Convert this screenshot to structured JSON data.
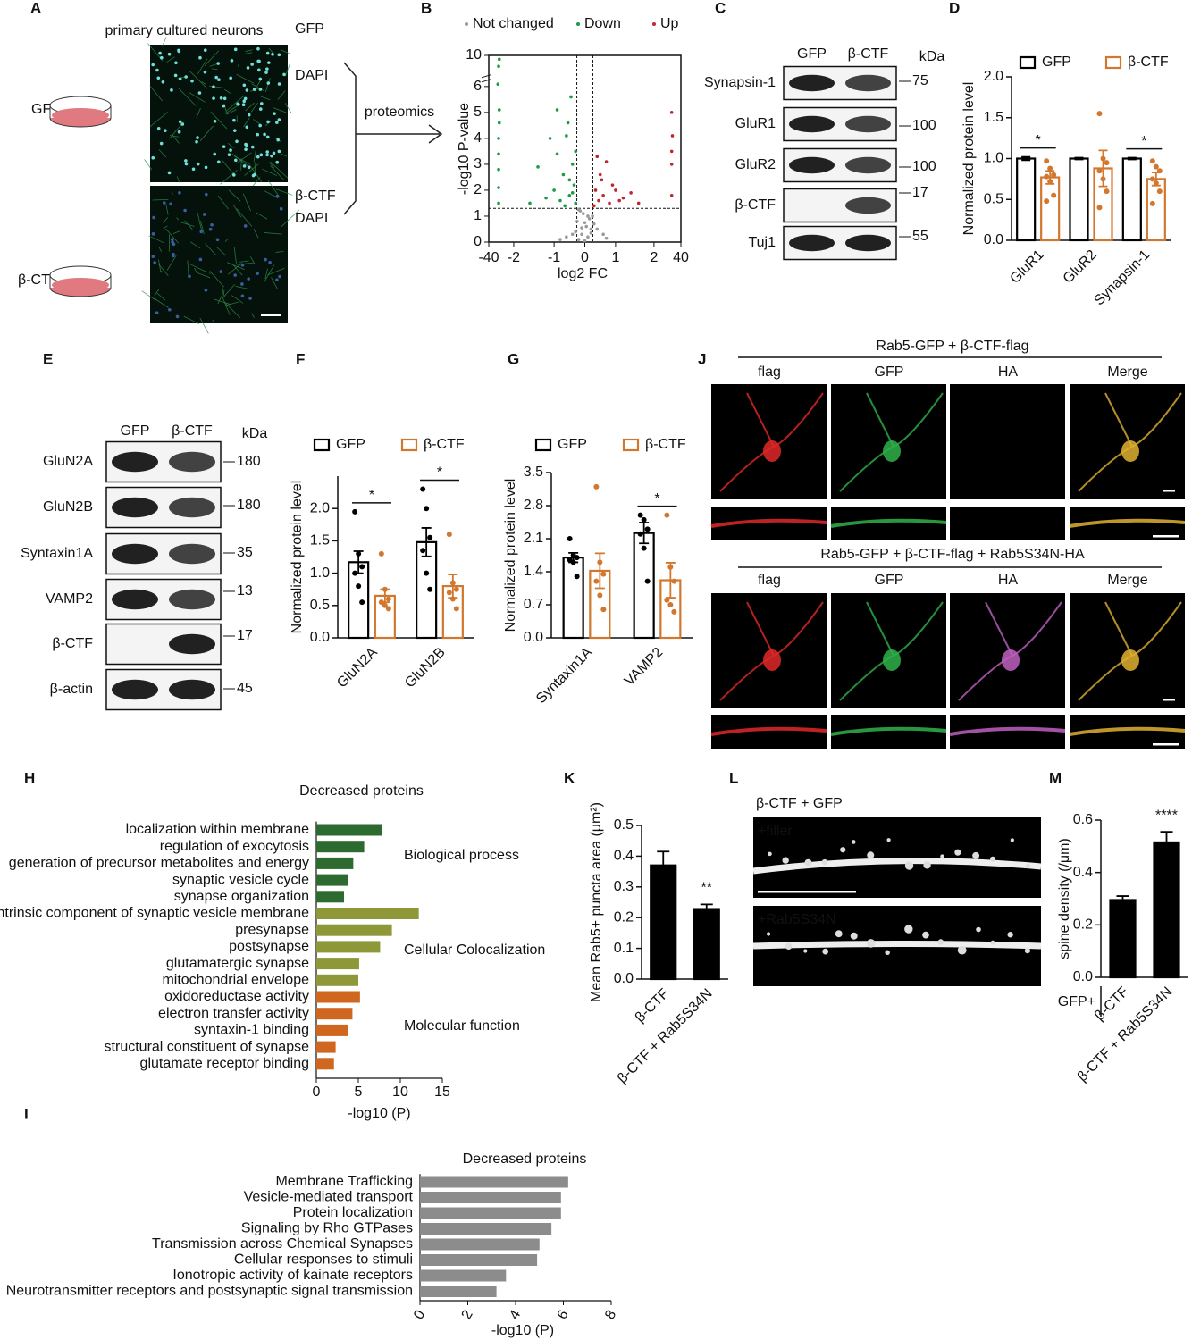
{
  "panel_a": {
    "label": "A",
    "title": "primary cultured neurons",
    "conditions": [
      "GFP",
      "β-CTF"
    ],
    "stains": [
      [
        "GFP",
        "DAPI"
      ],
      [
        "β-CTF",
        "DAPI"
      ]
    ],
    "arrow_label": "proteomics"
  },
  "panel_c": {
    "label": "C",
    "lanes": [
      "GFP",
      "β-CTF"
    ],
    "unit": "kDa",
    "rows": [
      {
        "name": "Synapsin-1",
        "kda": 75
      },
      {
        "name": "GluR1",
        "kda": 100
      },
      {
        "name": "GluR2",
        "kda": 100
      },
      {
        "name": "β-CTF",
        "kda": 17
      },
      {
        "name": "Tuj1",
        "kda": 55
      }
    ]
  },
  "panel_e": {
    "label": "E",
    "lanes": [
      "GFP",
      "β-CTF"
    ],
    "unit": "kDa",
    "rows": [
      {
        "name": "GluN2A",
        "kda": 180
      },
      {
        "name": "GluN2B",
        "kda": 180
      },
      {
        "name": "Syntaxin1A",
        "kda": 35
      },
      {
        "name": "VAMP2",
        "kda": 13
      },
      {
        "name": "β-CTF",
        "kda": 17
      },
      {
        "name": "β-actin",
        "kda": 45
      }
    ]
  },
  "panel_j": {
    "label": "J",
    "groups": [
      {
        "title": "Rab5-GFP + β-CTF-flag",
        "channels": [
          "flag",
          "GFP",
          "HA",
          "Merge"
        ]
      },
      {
        "title": "Rab5-GFP + β-CTF-flag + Rab5S34N-HA",
        "channels": [
          "flag",
          "GFP",
          "HA",
          "Merge"
        ]
      }
    ]
  },
  "panel_l": {
    "label": "L",
    "title": "β-CTF + GFP",
    "conditions": [
      "+filler",
      "+Rab5S34N"
    ]
  },
  "chart_data": [
    {
      "type": "scatter",
      "label": "B",
      "xlabel": "log2 FC",
      "ylabel": "-log10 P-value",
      "xlim": [
        -40,
        40
      ],
      "ylim": [
        0,
        10
      ],
      "xticks": [
        -40,
        -2,
        -1,
        0,
        1,
        2,
        40
      ],
      "yticks": [
        0,
        1,
        2,
        3,
        4,
        5,
        6,
        10
      ],
      "thresholds": {
        "x": [
          -0.26,
          0.26
        ],
        "y": 1.3
      },
      "series": [
        {
          "name": "Not changed",
          "color": "#9a9a9a",
          "x": [
            -0.2,
            -0.1,
            0,
            0.1,
            0.2,
            -0.25,
            0.25,
            -0.15,
            0.15,
            0.05,
            -0.05,
            -0.3,
            0.3,
            -0.4,
            0.4,
            -0.6,
            0.6,
            -0.8,
            0.7,
            -0.2,
            0.2,
            0,
            -0.1,
            0.1
          ],
          "values": [
            0.1,
            0.3,
            0.05,
            0.2,
            0.5,
            0.8,
            1.0,
            1.2,
            0.9,
            0.6,
            1.1,
            0.4,
            0.7,
            0.3,
            0.5,
            0.2,
            0.3,
            0.1,
            0.15,
            1.25,
            0.35,
            0.75,
            0.55,
            1.0
          ]
        },
        {
          "name": "Down",
          "color": "#1f9a45",
          "x": [
            -0.3,
            -0.35,
            -0.4,
            -0.5,
            -0.6,
            -0.7,
            -0.8,
            -0.9,
            -1.0,
            -1.2,
            -1.4,
            -1.6,
            -0.45,
            -0.55,
            -0.65,
            -0.3,
            -0.4,
            -0.9,
            -0.5,
            -1.1,
            -25,
            -25,
            -25,
            -25,
            -25,
            -24,
            -24,
            -26,
            -24,
            -25
          ],
          "values": [
            1.5,
            2.2,
            3.0,
            1.8,
            4.1,
            2.6,
            1.6,
            3.4,
            2.0,
            1.7,
            2.9,
            1.5,
            5.6,
            4.6,
            1.4,
            3.5,
            1.9,
            5.1,
            2.4,
            4.0,
            1.5,
            2.1,
            2.8,
            3.4,
            4.0,
            4.6,
            5.1,
            6.3,
            9.5,
            8.6
          ]
        },
        {
          "name": "Up",
          "color": "#c0272d",
          "x": [
            0.3,
            0.35,
            0.45,
            0.5,
            0.6,
            0.7,
            0.8,
            0.9,
            1.0,
            1.2,
            1.4,
            1.6,
            0.4,
            0.55,
            1.1,
            27,
            27,
            27,
            28,
            27
          ],
          "values": [
            1.4,
            2.0,
            1.6,
            2.6,
            1.8,
            3.1,
            1.5,
            2.2,
            2.0,
            1.7,
            1.9,
            1.5,
            3.3,
            2.4,
            1.6,
            1.8,
            3.0,
            3.5,
            4.1,
            5.0
          ]
        }
      ]
    },
    {
      "type": "bar",
      "label": "D",
      "ylabel": "Normalized protein level",
      "categories": [
        "GluR1",
        "GluR2",
        "Synapsin-1"
      ],
      "ylim": [
        0,
        2
      ],
      "yticks": [
        {
          "value": 0,
          "label": "0.0"
        },
        0.5,
        {
          "value": 1,
          "label": "1.0"
        },
        1.5,
        {
          "value": 2,
          "label": "2.0"
        }
      ],
      "significance": [
        "*",
        null,
        "*"
      ],
      "series": [
        {
          "name": "GFP",
          "color": "#000000",
          "values": [
            1.0,
            1.0,
            1.0
          ],
          "errors": [
            0.02,
            0.01,
            0.01
          ]
        },
        {
          "name": "β-CTF",
          "color": "#d2772e",
          "values": [
            0.77,
            0.88,
            0.75
          ],
          "errors": [
            0.08,
            0.22,
            0.08
          ],
          "points": [
            [
              0.97,
              0.88,
              0.8,
              0.78,
              0.72,
              0.55,
              0.48
            ],
            [
              1.55,
              1.0,
              0.95,
              0.85,
              0.75,
              0.6,
              0.4
            ],
            [
              0.97,
              0.9,
              0.85,
              0.75,
              0.7,
              0.6,
              0.45
            ]
          ]
        }
      ]
    },
    {
      "type": "bar",
      "label": "F",
      "ylabel": "Normalized protein level",
      "categories": [
        "GluN2A",
        "GluN2B"
      ],
      "ylim": [
        0,
        2.5
      ],
      "yticks": [
        {
          "value": 0,
          "label": "0.0"
        },
        0.5,
        {
          "value": 1,
          "label": "1.0"
        },
        1.5,
        {
          "value": 2,
          "label": "2.0"
        }
      ],
      "significance": [
        "*",
        "*"
      ],
      "series": [
        {
          "name": "GFP",
          "color": "#000000",
          "values": [
            1.17,
            1.48
          ],
          "errors": [
            0.17,
            0.22
          ],
          "points": [
            [
              1.95,
              1.3,
              1.1,
              1.0,
              0.8,
              0.55
            ],
            [
              2.3,
              2.0,
              1.55,
              1.35,
              1.0,
              0.75
            ]
          ]
        },
        {
          "name": "β-CTF",
          "color": "#d2772e",
          "values": [
            0.65,
            0.8
          ],
          "errors": [
            0.1,
            0.18
          ],
          "points": [
            [
              1.3,
              0.75,
              0.6,
              0.55,
              0.5,
              0.45
            ],
            [
              1.6,
              0.85,
              0.75,
              0.7,
              0.6,
              0.45
            ]
          ]
        }
      ]
    },
    {
      "type": "bar",
      "label": "G",
      "ylabel": "Normalized protein level",
      "categories": [
        "Syntaxin1A",
        "VAMP2"
      ],
      "ylim": [
        0,
        3.5
      ],
      "yticks": [
        {
          "value": 0,
          "label": "0.0"
        },
        0.7,
        1.4,
        2.1,
        2.8,
        3.5
      ],
      "significance": [
        null,
        "*"
      ],
      "series": [
        {
          "name": "GFP",
          "color": "#000000",
          "values": [
            1.7,
            2.22
          ],
          "errors": [
            0.1,
            0.22
          ],
          "points": [
            [
              2.1,
              1.75,
              1.7,
              1.65,
              1.6,
              1.3
            ],
            [
              2.6,
              2.5,
              2.3,
              2.2,
              1.9,
              1.2
            ]
          ]
        },
        {
          "name": "β-CTF",
          "color": "#d2772e",
          "values": [
            1.42,
            1.22
          ],
          "errors": [
            0.37,
            0.37
          ],
          "points": [
            [
              3.2,
              1.6,
              1.35,
              1.2,
              0.9,
              0.6
            ],
            [
              2.6,
              1.5,
              1.2,
              0.8,
              0.7,
              0.55
            ]
          ]
        }
      ]
    },
    {
      "type": "barh",
      "label": "H",
      "title": "Decreased proteins",
      "xlabel": "-log10  (P)",
      "categories": [
        "localization within membrane",
        "regulation of exocytosis",
        "generation of precursor metabolites and energy",
        "synaptic vesicle cycle",
        "synapse organization",
        "intrinsic component of synaptic vesicle membrane",
        "presynapse",
        "postsynapse",
        "glutamatergic synapse",
        "mitochondrial envelope",
        "oxidoreductase activity",
        "electron transfer activity",
        "syntaxin-1 binding",
        "structural constituent of synapse",
        "glutamate receptor binding"
      ],
      "values": [
        7.8,
        5.7,
        4.4,
        3.8,
        3.3,
        12.2,
        9.0,
        7.6,
        5.1,
        5.0,
        5.2,
        4.3,
        3.8,
        2.3,
        2.1
      ],
      "colors": [
        "#2d6a2f",
        "#2d6a2f",
        "#2d6a2f",
        "#2d6a2f",
        "#2d6a2f",
        "#8f9838",
        "#8f9838",
        "#8f9838",
        "#8f9838",
        "#8f9838",
        "#d0671f",
        "#d0671f",
        "#d0671f",
        "#d0671f",
        "#d0671f"
      ],
      "groups": [
        "Biological process",
        "Cellular Colocalization",
        "Molecular function"
      ],
      "xlim": [
        0,
        15
      ],
      "xticks": [
        0,
        5,
        10,
        15
      ]
    },
    {
      "type": "barh",
      "label": "I",
      "title": "Decreased proteins",
      "xlabel": "-log10  (P)",
      "categories": [
        "Membrane Trafficking",
        "Vesicle-mediated transport",
        "Protein localization",
        "Signaling by Rho GTPases",
        "Transmission across Chemical Synapses",
        "Cellular responses to stimuli",
        "Ionotropic activity of kainate receptors",
        "Neurotransmitter receptors and postsynaptic signal transmission"
      ],
      "values": [
        6.2,
        5.9,
        5.9,
        5.5,
        5.0,
        4.9,
        3.6,
        3.2
      ],
      "color": "#8c8c8c",
      "xlim": [
        0,
        8
      ],
      "xticks": [
        0,
        2,
        4,
        6,
        8
      ]
    },
    {
      "type": "bar",
      "label": "K",
      "ylabel": "Mean Rab5+ puncta area (μm²)",
      "categories": [
        "β-CTF",
        "β-CTF + Rab5S34N"
      ],
      "values": [
        0.37,
        0.228
      ],
      "errors": [
        0.045,
        0.015
      ],
      "color": "#000000",
      "significance": [
        null,
        "**"
      ],
      "ylim": [
        0,
        0.5
      ],
      "yticks": [
        {
          "value": 0,
          "label": "0.0"
        },
        0.1,
        0.2,
        0.3,
        0.4,
        0.5
      ]
    },
    {
      "type": "bar",
      "label": "M",
      "ylabel": "spine density (/μm)",
      "group_label": "GFP+",
      "categories": [
        "β-CTF",
        "β-CTF + Rab5S34N"
      ],
      "values": [
        0.295,
        0.515
      ],
      "errors": [
        0.015,
        0.04
      ],
      "color": "#000000",
      "significance": [
        null,
        "****"
      ],
      "ylim": [
        0,
        0.6
      ],
      "yticks": [
        {
          "value": 0,
          "label": "0.0"
        },
        0.2,
        0.4,
        0.6
      ]
    }
  ]
}
